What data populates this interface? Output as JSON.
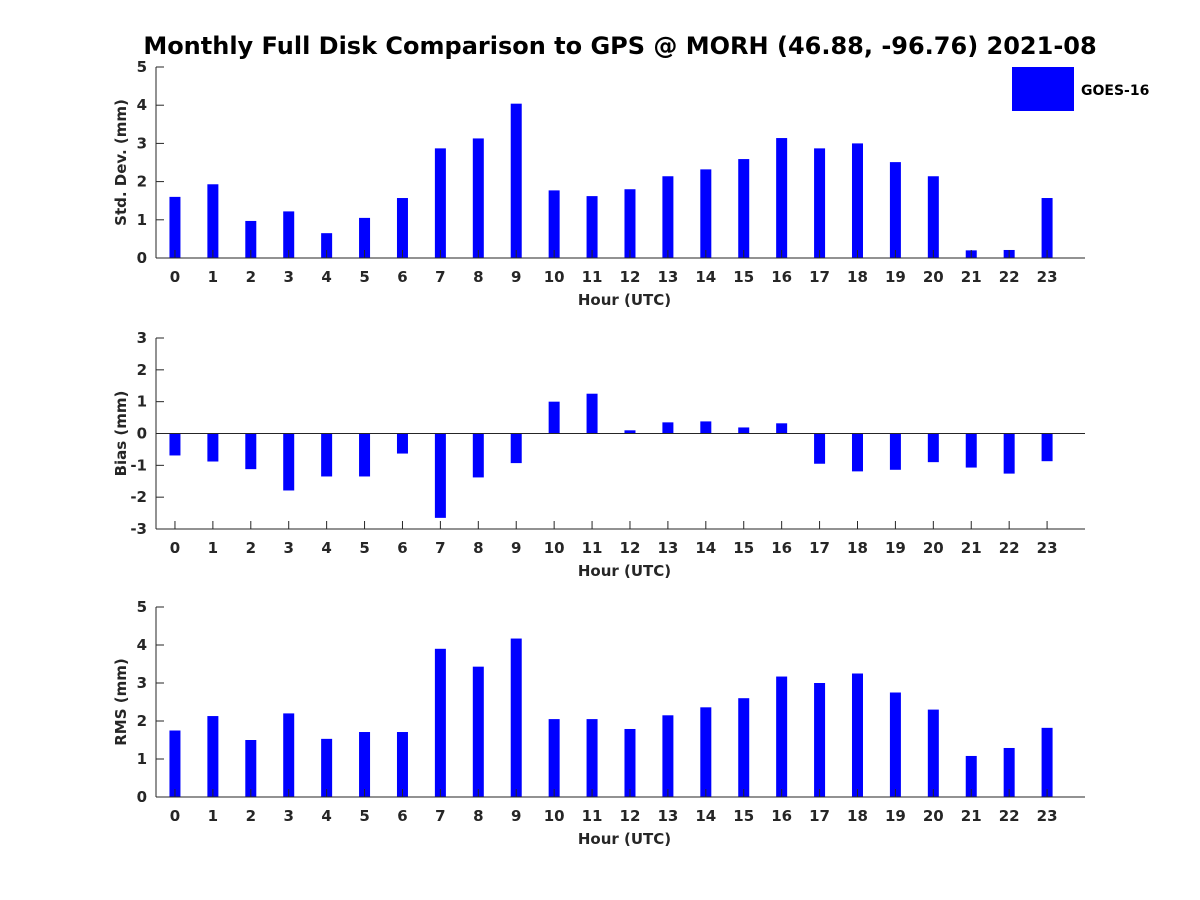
{
  "chart_data": {
    "type": "bar",
    "title": "Monthly Full Disk Comparison to GPS @ MORH (46.88, -96.76) 2021-08",
    "legend": {
      "label": "GOES-16",
      "color": "#0000ff",
      "placement": "top-right"
    },
    "categories": [
      "0",
      "1",
      "2",
      "3",
      "4",
      "5",
      "6",
      "7",
      "8",
      "9",
      "10",
      "11",
      "12",
      "13",
      "14",
      "15",
      "16",
      "17",
      "18",
      "19",
      "20",
      "21",
      "22",
      "23"
    ],
    "panels": [
      {
        "xlabel": "Hour (UTC)",
        "ylabel": "Std. Dev. (mm)",
        "ylim": [
          0,
          5
        ],
        "yticks": [
          "0",
          "1",
          "2",
          "3",
          "4",
          "5"
        ],
        "series": [
          {
            "name": "GOES-16",
            "values": [
              1.6,
              1.93,
              0.97,
              1.22,
              0.65,
              1.05,
              1.57,
              2.87,
              3.13,
              4.04,
              1.77,
              1.62,
              1.8,
              2.14,
              2.32,
              2.59,
              3.14,
              2.87,
              3.0,
              2.51,
              2.14,
              0.2,
              0.21,
              1.57
            ]
          }
        ]
      },
      {
        "xlabel": "Hour (UTC)",
        "ylabel": "Bias (mm)",
        "ylim": [
          -3,
          3
        ],
        "yticks": [
          "-3",
          "-2",
          "-1",
          "0",
          "1",
          "2",
          "3"
        ],
        "series": [
          {
            "name": "GOES-16",
            "values": [
              -0.69,
              -0.88,
              -1.12,
              -1.79,
              -1.35,
              -1.35,
              -0.63,
              -2.65,
              -1.38,
              -0.93,
              1.0,
              1.25,
              0.1,
              0.35,
              0.38,
              0.19,
              0.32,
              -0.95,
              -1.19,
              -1.14,
              -0.9,
              -1.07,
              -1.26,
              -0.87
            ]
          }
        ]
      },
      {
        "xlabel": "Hour (UTC)",
        "ylabel": "RMS (mm)",
        "ylim": [
          0,
          5
        ],
        "yticks": [
          "0",
          "1",
          "2",
          "3",
          "4",
          "5"
        ],
        "series": [
          {
            "name": "GOES-16",
            "values": [
              1.75,
              2.13,
              1.5,
              2.2,
              1.53,
              1.71,
              1.71,
              3.9,
              3.43,
              4.17,
              2.05,
              2.05,
              1.79,
              2.15,
              2.36,
              2.6,
              3.17,
              3.0,
              3.25,
              2.75,
              2.3,
              1.08,
              1.29,
              1.82
            ]
          }
        ]
      }
    ],
    "grid": false
  }
}
